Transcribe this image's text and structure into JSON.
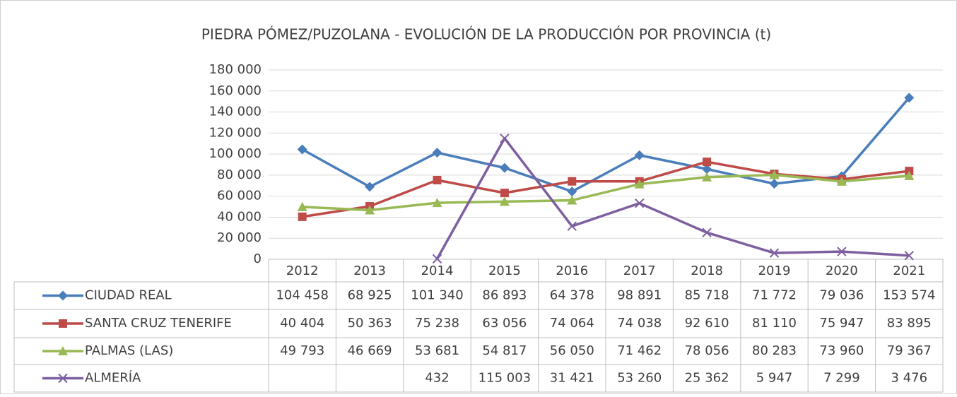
{
  "chart_data": {
    "type": "line",
    "title": "PIEDRA PÓMEZ/PUZOLANA  - EVOLUCIÓN  DE LA PRODUCCIÓN  POR PROVINCIA  (t)",
    "categories": [
      "2012",
      "2013",
      "2014",
      "2015",
      "2016",
      "2017",
      "2018",
      "2019",
      "2020",
      "2021"
    ],
    "ylim": [
      0,
      180000
    ],
    "yticks": [
      0,
      {
        "value": 20000,
        "label": "20 000"
      },
      {
        "value": 40000,
        "label": "40 000"
      },
      {
        "value": 60000,
        "label": "60 000"
      },
      {
        "value": 80000,
        "label": "80 000"
      },
      {
        "value": 100000,
        "label": "100 000"
      },
      {
        "value": 120000,
        "label": "120 000"
      },
      {
        "value": 140000,
        "label": "140 000"
      },
      {
        "value": 160000,
        "label": "160 000"
      },
      {
        "value": 180000,
        "label": "180 000"
      }
    ],
    "grid": true,
    "series": [
      {
        "name": "CIUDAD REAL",
        "color": "#4a7ebb",
        "marker": "diamond",
        "values": [
          104458,
          68925,
          101340,
          86893,
          64378,
          98891,
          85718,
          71772,
          79036,
          153574
        ],
        "value_labels": [
          "104 458",
          "68 925",
          "101 340",
          "86 893",
          "64 378",
          "98 891",
          "85 718",
          "71 772",
          "79 036",
          "153 574"
        ]
      },
      {
        "name": "SANTA CRUZ TENERIFE",
        "color": "#be4b48",
        "marker": "square",
        "values": [
          40404,
          50363,
          75238,
          63056,
          74064,
          74038,
          92610,
          81110,
          75947,
          83895
        ],
        "value_labels": [
          "40 404",
          "50 363",
          "75 238",
          "63 056",
          "74 064",
          "74 038",
          "92 610",
          "81 110",
          "75 947",
          "83 895"
        ]
      },
      {
        "name": "PALMAS (LAS)",
        "color": "#98b954",
        "marker": "triangle",
        "values": [
          49793,
          46669,
          53681,
          54817,
          56050,
          71462,
          78056,
          80283,
          73960,
          79367
        ],
        "value_labels": [
          "49 793",
          "46 669",
          "53 681",
          "54 817",
          "56 050",
          "71 462",
          "78 056",
          "80 283",
          "73 960",
          "79 367"
        ]
      },
      {
        "name": "ALMERÍA",
        "color": "#7d5fa0",
        "marker": "x",
        "values": [
          null,
          null,
          432,
          115003,
          31421,
          53260,
          25362,
          5947,
          7299,
          3476
        ],
        "value_labels": [
          null,
          null,
          "432",
          "115 003",
          "31 421",
          "53 260",
          "25 362",
          "5 947",
          "7 299",
          "3 476"
        ]
      }
    ]
  }
}
